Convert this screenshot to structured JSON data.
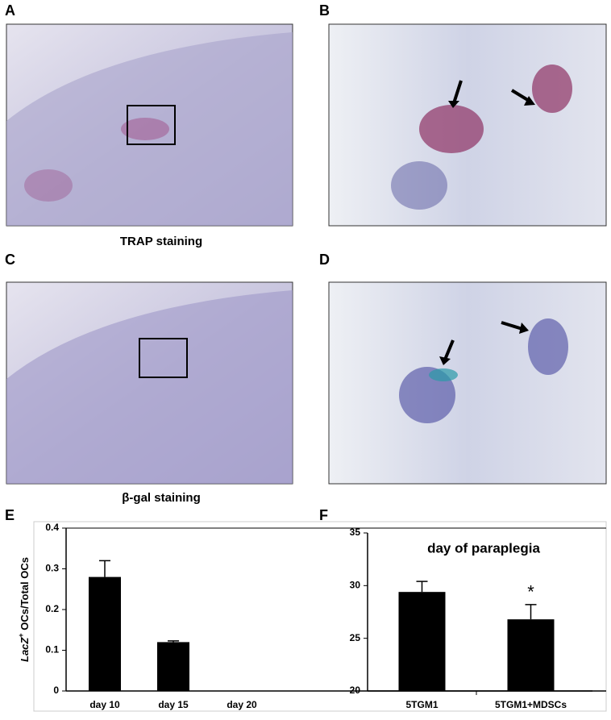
{
  "panels": {
    "labels": [
      "A",
      "B",
      "C",
      "D",
      "E",
      "F"
    ],
    "captions": [
      "TRAP staining",
      "β-gal staining"
    ]
  },
  "chart_data": [
    {
      "type": "bar",
      "ylabel": [
        "LacZ",
        "+",
        " OCs/Total OCs"
      ],
      "categories": [
        "day 10",
        "day 15",
        "day 20"
      ],
      "values": [
        0.28,
        0.12,
        0
      ],
      "errors": [
        0.04,
        0.003,
        0
      ],
      "color": "#000000",
      "ylim": [
        0,
        0.4
      ],
      "yticks": [
        0,
        0.1,
        0.2,
        0.3,
        0.4
      ]
    },
    {
      "type": "bar",
      "title": "day of paraplegia",
      "categories": [
        "5TGM1",
        "5TGM1+MDSCs"
      ],
      "values": [
        29.4,
        26.8
      ],
      "errors": [
        1.0,
        1.4
      ],
      "annotations": [
        "*"
      ],
      "color": "#000000",
      "ylim": [
        20,
        35
      ],
      "yticks": [
        20,
        25,
        30,
        35
      ]
    }
  ]
}
